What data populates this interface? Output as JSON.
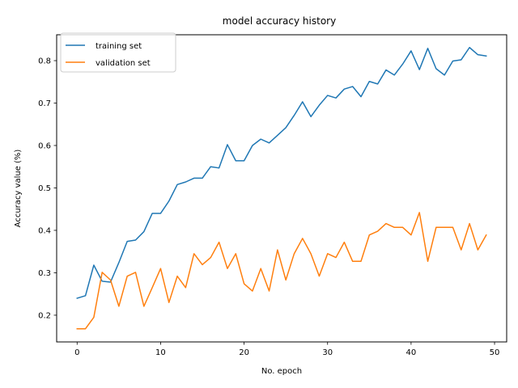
{
  "chart_data": {
    "type": "line",
    "title": "model accuracy history",
    "xlabel": "No. epoch",
    "ylabel": "Accuracy value (%)",
    "xlim": [
      -2.45,
      51.45
    ],
    "ylim": [
      0.137,
      0.861
    ],
    "xticks": [
      0,
      10,
      20,
      30,
      40,
      50
    ],
    "yticks": [
      0.2,
      0.3,
      0.4,
      0.5,
      0.6,
      0.7,
      0.8
    ],
    "xtick_labels": [
      "0",
      "10",
      "20",
      "30",
      "40",
      "50"
    ],
    "ytick_labels": [
      "0.2",
      "0.3",
      "0.4",
      "0.5",
      "0.6",
      "0.7",
      "0.8"
    ],
    "grid": false,
    "legend": "upper left",
    "x": [
      0,
      1,
      2,
      3,
      4,
      5,
      6,
      7,
      8,
      9,
      10,
      11,
      12,
      13,
      14,
      15,
      16,
      17,
      18,
      19,
      20,
      21,
      22,
      23,
      24,
      25,
      26,
      27,
      28,
      29,
      30,
      31,
      32,
      33,
      34,
      35,
      36,
      37,
      38,
      39,
      40,
      41,
      42,
      43,
      44,
      45,
      46,
      47,
      48,
      49
    ],
    "series": [
      {
        "name": "training set",
        "color": "#1f77b4",
        "values": [
          0.24,
          0.246,
          0.318,
          0.28,
          0.278,
          0.324,
          0.374,
          0.377,
          0.397,
          0.44,
          0.44,
          0.469,
          0.508,
          0.514,
          0.523,
          0.523,
          0.55,
          0.547,
          0.602,
          0.564,
          0.564,
          0.6,
          0.615,
          0.606,
          0.624,
          0.642,
          0.671,
          0.703,
          0.668,
          0.695,
          0.718,
          0.712,
          0.733,
          0.739,
          0.715,
          0.751,
          0.745,
          0.778,
          0.766,
          0.792,
          0.823,
          0.779,
          0.829,
          0.781,
          0.766,
          0.799,
          0.802,
          0.831,
          0.814,
          0.811
        ]
      },
      {
        "name": "validation set",
        "color": "#ff7f0e",
        "values": [
          0.168,
          0.168,
          0.195,
          0.301,
          0.283,
          0.221,
          0.292,
          0.301,
          0.221,
          0.265,
          0.31,
          0.23,
          0.292,
          0.265,
          0.345,
          0.319,
          0.336,
          0.372,
          0.31,
          0.345,
          0.274,
          0.257,
          0.31,
          0.257,
          0.354,
          0.283,
          0.345,
          0.381,
          0.345,
          0.292,
          0.345,
          0.336,
          0.372,
          0.327,
          0.327,
          0.389,
          0.398,
          0.416,
          0.407,
          0.407,
          0.389,
          0.442,
          0.327,
          0.407,
          0.407,
          0.407,
          0.354,
          0.416,
          0.354,
          0.389
        ]
      }
    ]
  }
}
